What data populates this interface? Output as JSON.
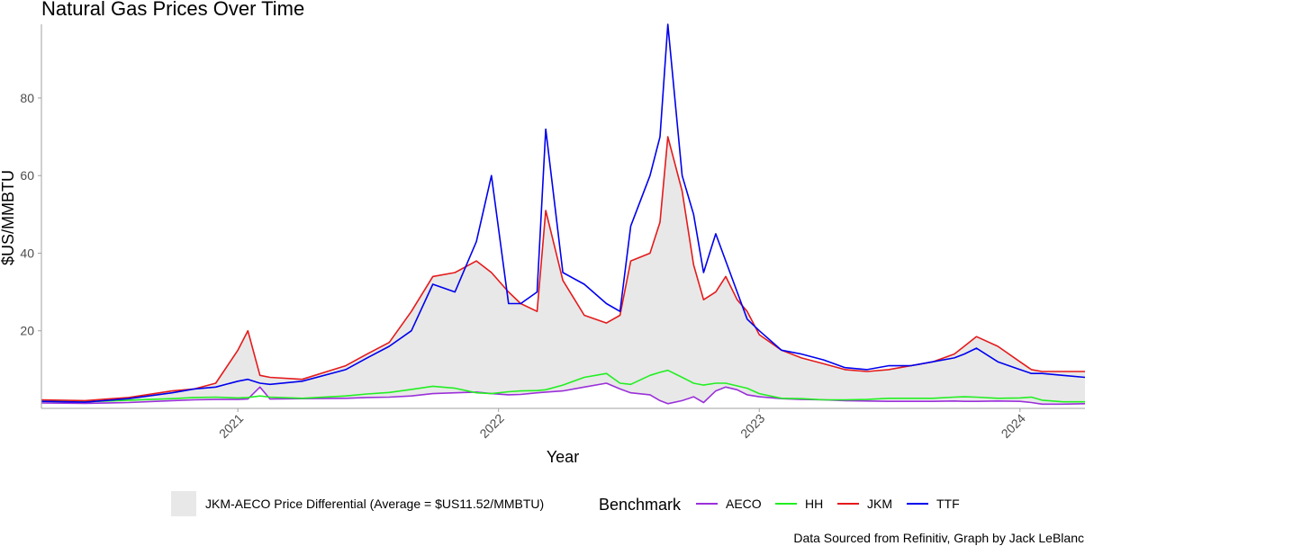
{
  "chart_data": {
    "type": "line",
    "title": "Natural Gas Prices Over Time",
    "xlabel": "Year",
    "ylabel": "$US/MMBTU",
    "xlim": [
      "2020-04-01",
      "2024-04-01"
    ],
    "ylim": [
      0,
      99
    ],
    "x_ticks": [
      "2021",
      "2022",
      "2023",
      "2024"
    ],
    "y_ticks": [
      20,
      40,
      60,
      80
    ],
    "grid": false,
    "legend_position": "bottom",
    "legend_title": "Benchmark",
    "caption": "Data Sourced from Refinitiv, Graph by Jack LeBlanc",
    "ribbon": {
      "label": "JKM-AECO Price Differential (Average = $US11.52/MMBTU)",
      "between": [
        "AECO",
        "JKM"
      ],
      "color": "#e8e8e8"
    },
    "x_dates": [
      "2020-04-01",
      "2020-06-01",
      "2020-08-01",
      "2020-10-01",
      "2020-11-01",
      "2020-12-01",
      "2021-01-01",
      "2021-01-15",
      "2021-02-01",
      "2021-02-15",
      "2021-04-01",
      "2021-06-01",
      "2021-07-01",
      "2021-08-01",
      "2021-09-01",
      "2021-10-01",
      "2021-11-01",
      "2021-12-01",
      "2021-12-22",
      "2022-01-15",
      "2022-02-01",
      "2022-02-24",
      "2022-03-08",
      "2022-04-01",
      "2022-05-01",
      "2022-06-01",
      "2022-06-20",
      "2022-07-05",
      "2022-08-01",
      "2022-08-15",
      "2022-08-26",
      "2022-09-15",
      "2022-10-01",
      "2022-10-15",
      "2022-11-01",
      "2022-11-15",
      "2022-12-01",
      "2022-12-15",
      "2023-01-01",
      "2023-02-01",
      "2023-03-01",
      "2023-04-01",
      "2023-05-01",
      "2023-06-01",
      "2023-07-01",
      "2023-08-01",
      "2023-09-01",
      "2023-10-01",
      "2023-10-15",
      "2023-11-01",
      "2023-12-01",
      "2024-01-01",
      "2024-01-17",
      "2024-02-01",
      "2024-03-01",
      "2024-04-01"
    ],
    "series": [
      {
        "name": "AECO",
        "color": "#9b30d9",
        "values": [
          1.4,
          1.3,
          1.5,
          2.0,
          2.2,
          2.3,
          2.3,
          2.4,
          5.5,
          2.4,
          2.5,
          2.6,
          2.8,
          2.9,
          3.2,
          3.8,
          4.0,
          4.2,
          3.8,
          3.5,
          3.6,
          4.0,
          4.2,
          4.5,
          5.5,
          6.5,
          5.0,
          4.0,
          3.5,
          2.0,
          1.2,
          2.0,
          3.0,
          1.5,
          4.5,
          5.5,
          4.8,
          3.5,
          3.0,
          2.5,
          2.3,
          2.2,
          2.0,
          1.9,
          1.8,
          1.8,
          1.8,
          1.9,
          1.8,
          1.8,
          1.9,
          1.8,
          1.5,
          1.1,
          1.1,
          1.2
        ]
      },
      {
        "name": "HH",
        "color": "#22ee22",
        "values": [
          1.8,
          1.7,
          2.1,
          2.5,
          2.8,
          2.9,
          2.7,
          2.8,
          3.2,
          2.9,
          2.6,
          3.2,
          3.7,
          4.1,
          4.9,
          5.7,
          5.2,
          4.0,
          3.8,
          4.3,
          4.5,
          4.6,
          4.8,
          6.0,
          8.0,
          9.0,
          6.5,
          6.2,
          8.5,
          9.3,
          9.8,
          8.0,
          6.5,
          6.0,
          6.5,
          6.5,
          5.8,
          5.2,
          3.8,
          2.6,
          2.5,
          2.2,
          2.2,
          2.3,
          2.6,
          2.6,
          2.6,
          2.9,
          3.0,
          2.9,
          2.6,
          2.7,
          2.9,
          2.1,
          1.7,
          1.7
        ]
      },
      {
        "name": "JKM",
        "color": "#e41a1c",
        "values": [
          2.2,
          2.0,
          2.8,
          4.5,
          5.0,
          6.5,
          15.0,
          20.0,
          8.5,
          8.0,
          7.5,
          11.0,
          14.0,
          17.0,
          25.0,
          34.0,
          35.0,
          38.0,
          35.0,
          30.0,
          27.0,
          25.0,
          51.0,
          33.0,
          24.0,
          22.0,
          24.0,
          38.0,
          40.0,
          48.0,
          70.0,
          56.0,
          37.0,
          28.0,
          30.0,
          34.0,
          28.0,
          25.0,
          19.0,
          15.0,
          13.0,
          11.5,
          10.0,
          9.5,
          10.0,
          11.0,
          12.0,
          14.0,
          16.0,
          18.5,
          16.0,
          12.0,
          10.0,
          9.5,
          9.5,
          9.5
        ]
      },
      {
        "name": "TTF",
        "color": "#0000ee",
        "values": [
          1.8,
          1.6,
          2.5,
          4.0,
          5.0,
          5.5,
          7.0,
          7.5,
          6.5,
          6.2,
          7.0,
          10.0,
          13.0,
          16.0,
          20.0,
          32.0,
          30.0,
          43.0,
          60.0,
          27.0,
          27.0,
          30.0,
          72.0,
          35.0,
          32.0,
          27.0,
          25.0,
          47.0,
          60.0,
          70.0,
          99.0,
          60.0,
          50.0,
          35.0,
          45.0,
          38.0,
          30.0,
          23.0,
          20.0,
          15.0,
          14.0,
          12.5,
          10.5,
          10.0,
          11.0,
          11.0,
          12.0,
          13.0,
          14.0,
          15.5,
          12.0,
          10.0,
          9.0,
          9.0,
          8.5,
          8.0
        ]
      }
    ]
  }
}
